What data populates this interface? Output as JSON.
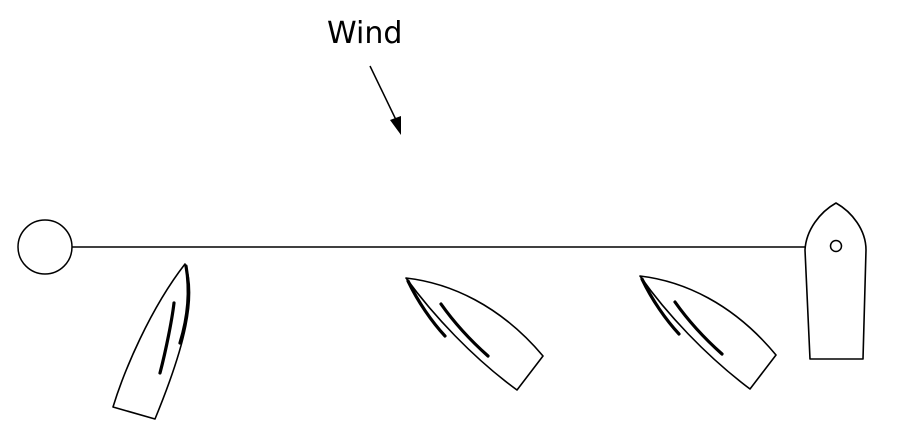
{
  "diagram": {
    "wind_label": "Wind",
    "colors": {
      "stroke": "#000000",
      "background": "#ffffff"
    },
    "elements": [
      "wind-arrow",
      "pin-end-mark",
      "starting-line",
      "committee-boat",
      "sailboat-1",
      "sailboat-2",
      "sailboat-3"
    ]
  }
}
